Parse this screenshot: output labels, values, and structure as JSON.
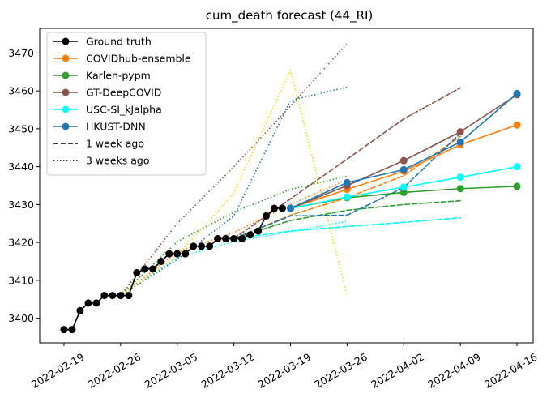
{
  "chart_data": {
    "type": "line",
    "title": "cum_death forecast (44_RI)",
    "xlabel": "",
    "ylabel": "",
    "ylim": [
      3393.5,
      3476.5
    ],
    "y_ticks": [
      3400,
      3410,
      3420,
      3430,
      3440,
      3450,
      3460,
      3470
    ],
    "x_ticks": [
      "2022-02-19",
      "2022-02-26",
      "2022-03-05",
      "2022-03-12",
      "2022-03-19",
      "2022-03-26",
      "2022-04-02",
      "2022-04-09",
      "2022-04-16"
    ],
    "xlim": [
      "2022-02-16",
      "2022-04-18"
    ],
    "legend_position": "upper left",
    "grid": false,
    "ground_truth": {
      "name": "Ground truth",
      "color": "#000000",
      "points": [
        [
          "2022-02-19",
          3397
        ],
        [
          "2022-02-20",
          3397
        ],
        [
          "2022-02-21",
          3402
        ],
        [
          "2022-02-22",
          3404
        ],
        [
          "2022-02-23",
          3404
        ],
        [
          "2022-02-24",
          3406
        ],
        [
          "2022-02-25",
          3406
        ],
        [
          "2022-02-26",
          3406
        ],
        [
          "2022-02-27",
          3406
        ],
        [
          "2022-02-28",
          3412
        ],
        [
          "2022-03-01",
          3413
        ],
        [
          "2022-03-02",
          3413
        ],
        [
          "2022-03-03",
          3415
        ],
        [
          "2022-03-04",
          3417
        ],
        [
          "2022-03-05",
          3417
        ],
        [
          "2022-03-06",
          3417
        ],
        [
          "2022-03-07",
          3419
        ],
        [
          "2022-03-08",
          3419
        ],
        [
          "2022-03-09",
          3419
        ],
        [
          "2022-03-10",
          3421
        ],
        [
          "2022-03-11",
          3421
        ],
        [
          "2022-03-12",
          3421
        ],
        [
          "2022-03-13",
          3421
        ],
        [
          "2022-03-14",
          3422
        ],
        [
          "2022-03-15",
          3423
        ],
        [
          "2022-03-16",
          3427
        ],
        [
          "2022-03-17",
          3429
        ],
        [
          "2022-03-18",
          3429
        ]
      ]
    },
    "series": [
      {
        "name": "COVIDhub-ensemble",
        "color": "#ff7f0e",
        "current": [
          [
            "2022-03-19",
            3429
          ],
          [
            "2022-03-26",
            3434.0
          ],
          [
            "2022-04-02",
            3438.8
          ],
          [
            "2022-04-09",
            3445.8
          ],
          [
            "2022-04-16",
            3451.0
          ]
        ],
        "week1": [
          [
            "2022-03-12",
            3421
          ],
          [
            "2022-03-19",
            3427.2
          ],
          [
            "2022-03-26",
            3431.8
          ],
          [
            "2022-04-02",
            3437.6
          ],
          [
            "2022-04-09",
            3448.0
          ]
        ],
        "week3": [
          [
            "2022-02-26",
            3406
          ],
          [
            "2022-03-05",
            3417.5
          ],
          [
            "2022-03-12",
            3422.6
          ],
          [
            "2022-03-19",
            3430.0
          ],
          [
            "2022-03-26",
            3436.6
          ]
        ]
      },
      {
        "name": "Karlen-pypm",
        "color": "#2ca02c",
        "current": [
          [
            "2022-03-19",
            3429
          ],
          [
            "2022-03-26",
            3431.8
          ],
          [
            "2022-04-02",
            3433.2
          ],
          [
            "2022-04-09",
            3434.2
          ],
          [
            "2022-04-16",
            3434.8
          ]
        ],
        "week1": [
          [
            "2022-03-12",
            3421
          ],
          [
            "2022-03-19",
            3425.8
          ],
          [
            "2022-03-26",
            3428.5
          ],
          [
            "2022-04-02",
            3430.0
          ],
          [
            "2022-04-09",
            3431.0
          ]
        ],
        "week3": [
          [
            "2022-02-26",
            3406
          ],
          [
            "2022-03-05",
            3420.2
          ],
          [
            "2022-03-12",
            3428.0
          ],
          [
            "2022-03-19",
            3434.0
          ],
          [
            "2022-03-26",
            3437.5
          ]
        ]
      },
      {
        "name": "GT-DeepCOVID",
        "color": "#8c564b",
        "current": [
          [
            "2022-03-19",
            3429
          ],
          [
            "2022-03-26",
            3435.0
          ],
          [
            "2022-04-02",
            3441.6
          ],
          [
            "2022-04-09",
            3449.2
          ],
          [
            "2022-04-16",
            3459.0
          ]
        ],
        "week1": [
          [
            "2022-03-12",
            3421
          ],
          [
            "2022-03-19",
            3431.5
          ],
          [
            "2022-03-26",
            3442.0
          ],
          [
            "2022-04-02",
            3452.6
          ],
          [
            "2022-04-09",
            3460.8
          ]
        ],
        "week3": [
          [
            "2022-02-26",
            3406
          ],
          [
            "2022-03-05",
            3425.0
          ],
          [
            "2022-03-12",
            3440.0
          ],
          [
            "2022-03-19",
            3456.0
          ],
          [
            "2022-03-26",
            3472.5
          ]
        ]
      },
      {
        "name": "USC-SI_kJalpha",
        "color": "#00ffff",
        "current": [
          [
            "2022-03-19",
            3429
          ],
          [
            "2022-03-26",
            3432.0
          ],
          [
            "2022-04-02",
            3434.6
          ],
          [
            "2022-04-09",
            3437.2
          ],
          [
            "2022-04-16",
            3440.0
          ]
        ],
        "week1": [
          [
            "2022-03-12",
            3421
          ],
          [
            "2022-03-19",
            3423.0
          ],
          [
            "2022-03-26",
            3424.2
          ],
          [
            "2022-04-02",
            3425.3
          ],
          [
            "2022-04-09",
            3426.5
          ]
        ],
        "week3": [
          [
            "2022-02-26",
            3406
          ],
          [
            "2022-03-05",
            3416.0
          ],
          [
            "2022-03-12",
            3420.2
          ],
          [
            "2022-03-19",
            3422.8
          ],
          [
            "2022-03-26",
            3425.6
          ]
        ]
      },
      {
        "name": "HKUST-DNN",
        "color": "#1f77b4",
        "current": [
          [
            "2022-03-19",
            3429
          ],
          [
            "2022-03-26",
            3435.8
          ],
          [
            "2022-04-02",
            3439.2
          ],
          [
            "2022-04-09",
            3446.5
          ],
          [
            "2022-04-16",
            3459.3
          ]
        ],
        "week1": [
          [
            "2022-03-12",
            3421
          ],
          [
            "2022-03-19",
            3427.0
          ],
          [
            "2022-03-26",
            3427.2
          ],
          [
            "2022-04-02",
            3434.5
          ],
          [
            "2022-04-09",
            3448.8
          ]
        ],
        "week3": [
          [
            "2022-02-26",
            3406
          ],
          [
            "2022-03-05",
            3415.5
          ],
          [
            "2022-03-12",
            3427.0
          ],
          [
            "2022-03-19",
            3457.5
          ],
          [
            "2022-03-26",
            3461.0
          ]
        ]
      }
    ],
    "extra_lines": [
      {
        "color": "#ffd700",
        "style": "dotted",
        "points": [
          [
            "2022-02-26",
            3406
          ],
          [
            "2022-03-05",
            3416.5
          ],
          [
            "2022-03-12",
            3433.0
          ],
          [
            "2022-03-19",
            3465.5
          ],
          [
            "2022-03-26",
            3406.0
          ]
        ]
      }
    ],
    "legend": [
      {
        "label": "Ground truth",
        "color": "#000000",
        "style": "solid",
        "marker": true
      },
      {
        "label": "COVIDhub-ensemble",
        "color": "#ff7f0e",
        "style": "solid",
        "marker": true
      },
      {
        "label": "Karlen-pypm",
        "color": "#2ca02c",
        "style": "solid",
        "marker": true
      },
      {
        "label": "GT-DeepCOVID",
        "color": "#8c564b",
        "style": "solid",
        "marker": true
      },
      {
        "label": "USC-SI_kJalpha",
        "color": "#00ffff",
        "style": "solid",
        "marker": true
      },
      {
        "label": "HKUST-DNN",
        "color": "#1f77b4",
        "style": "solid",
        "marker": true
      },
      {
        "label": "1 week ago",
        "color": "#000000",
        "style": "dashed",
        "marker": false
      },
      {
        "label": "3 weeks ago",
        "color": "#000000",
        "style": "dotted",
        "marker": false
      }
    ]
  }
}
